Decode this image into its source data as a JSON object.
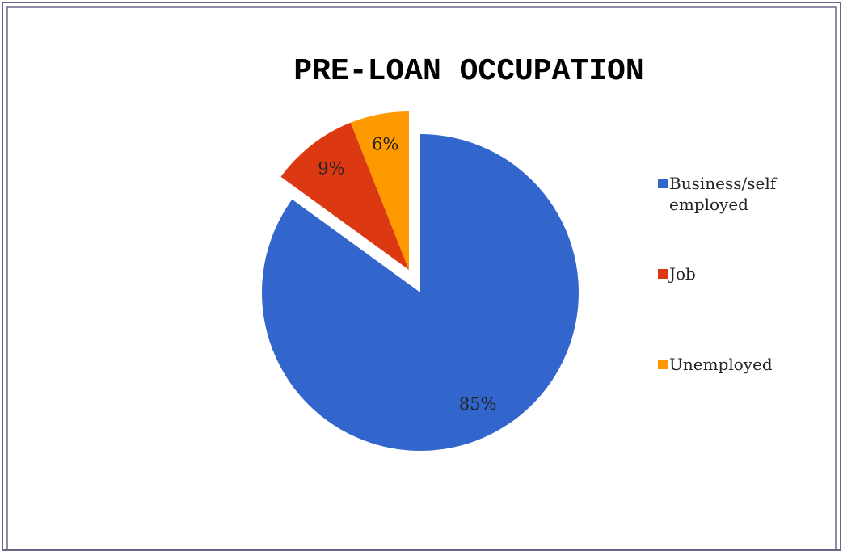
{
  "chart_data": {
    "type": "pie",
    "title": "PRE-LOAN OCCUPATION",
    "categories": [
      "Business/self employed",
      "Job",
      "Unemployed"
    ],
    "values": [
      85,
      9,
      6
    ],
    "value_labels": [
      "85%",
      "9%",
      "6%"
    ],
    "colors": [
      "#3366cc",
      "#dc3912",
      "#ff9900"
    ],
    "legend": "right"
  }
}
